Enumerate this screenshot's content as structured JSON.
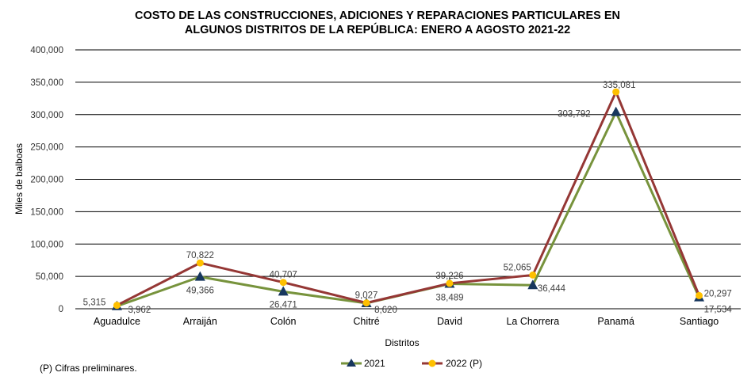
{
  "chart_data": {
    "type": "line",
    "title": [
      "COSTO DE LAS CONSTRUCCIONES, ADICIONES Y REPARACIONES PARTICULARES EN",
      "ALGUNOS DISTRITOS DE LA REPÚBLICA: ENERO A AGOSTO 2021-22"
    ],
    "xlabel": "Distritos",
    "ylabel": "Miles de balboas",
    "ylim": [
      0,
      400000
    ],
    "yticks": [
      "0",
      "50,000",
      "100,000",
      "150,000",
      "200,000",
      "250,000",
      "300,000",
      "350,000",
      "400,000"
    ],
    "grid": true,
    "legend_position": "bottom",
    "categories": [
      "Aguadulce",
      "Arraiján",
      "Colón",
      "Chitré",
      "David",
      "La Chorrera",
      "Panamá",
      "Santiago"
    ],
    "series": [
      {
        "name": "2021",
        "color": "#77933C",
        "marker_color": "#17375E",
        "marker": "triangle",
        "values": [
          3962,
          49366,
          26471,
          8620,
          38489,
          36444,
          303792,
          17534
        ],
        "labels": [
          "3,962",
          "49,366",
          "26,471",
          "8,620",
          "38,489",
          "36,444",
          "303,792",
          "17,534"
        ]
      },
      {
        "name": "2022 (P)",
        "color": "#953735",
        "marker_color": "#FFC000",
        "marker": "circle",
        "values": [
          5315,
          70822,
          40707,
          9027,
          39226,
          52065,
          335081,
          20297
        ],
        "labels": [
          "5,315",
          "70,822",
          "40,707",
          "9,027",
          "39,226",
          "52,065",
          "335,081",
          "20,297"
        ]
      }
    ],
    "footnote": "(P) Cifras  preliminares."
  }
}
